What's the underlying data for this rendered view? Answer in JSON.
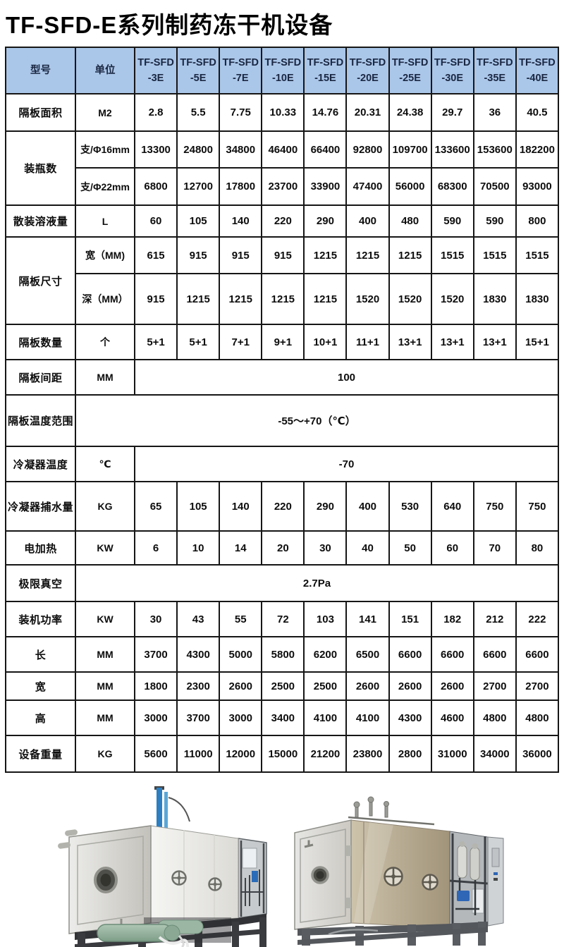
{
  "title": "TF-SFD-E系列制药冻干机设备",
  "colors": {
    "header_bg": "#aac6e8",
    "header_text": "#1a2742",
    "border": "#161616",
    "compressor_green": "#8fae99",
    "pipe_blue": "#2d7fc2"
  },
  "table": {
    "header": {
      "model_label": "型号",
      "unit_label": "单位",
      "model_prefix": "TF-SFD",
      "models": [
        "-3E",
        "-5E",
        "-7E",
        "-10E",
        "-15E",
        "-20E",
        "-25E",
        "-30E",
        "-35E",
        "-40E"
      ]
    },
    "rows": [
      {
        "label": "隔板面积",
        "unit": "M2",
        "values": [
          "2.8",
          "5.5",
          "7.75",
          "10.33",
          "14.76",
          "20.31",
          "24.38",
          "29.7",
          "36",
          "40.5"
        ]
      },
      {
        "label": "装瓶数",
        "subrows": [
          {
            "unit": "支/Φ16mm",
            "values": [
              "13300",
              "24800",
              "34800",
              "46400",
              "66400",
              "92800",
              "109700",
              "133600",
              "153600",
              "182200"
            ]
          },
          {
            "unit": "支/Φ22mm",
            "values": [
              "6800",
              "12700",
              "17800",
              "23700",
              "33900",
              "47400",
              "56000",
              "68300",
              "70500",
              "93000"
            ]
          }
        ]
      },
      {
        "label": "散装溶液量",
        "unit": "L",
        "values": [
          "60",
          "105",
          "140",
          "220",
          "290",
          "400",
          "480",
          "590",
          "590",
          "800"
        ]
      },
      {
        "label": "隔板尺寸",
        "subrows": [
          {
            "unit": "宽（MM)",
            "values": [
              "615",
              "915",
              "915",
              "915",
              "1215",
              "1215",
              "1215",
              "1515",
              "1515",
              "1515"
            ]
          },
          {
            "unit": "深（MM）",
            "values": [
              "915",
              "1215",
              "1215",
              "1215",
              "1215",
              "1520",
              "1520",
              "1520",
              "1830",
              "1830"
            ]
          }
        ]
      },
      {
        "label": "隔板数量",
        "unit": "个",
        "values": [
          "5+1",
          "5+1",
          "7+1",
          "9+1",
          "10+1",
          "11+1",
          "13+1",
          "13+1",
          "13+1",
          "15+1"
        ]
      },
      {
        "label": "隔板间距",
        "unit": "MM",
        "merged": "100"
      },
      {
        "label": "隔板温度范围",
        "merged_all": "-55～+70（℃）"
      },
      {
        "label": "冷凝器温度",
        "unit": "℃",
        "merged": "-70"
      },
      {
        "label": "冷凝器捕水量",
        "unit": "KG",
        "values": [
          "65",
          "105",
          "140",
          "220",
          "290",
          "400",
          "530",
          "640",
          "750",
          "750"
        ]
      },
      {
        "label": "电加热",
        "unit": "KW",
        "values": [
          "6",
          "10",
          "14",
          "20",
          "30",
          "40",
          "50",
          "60",
          "70",
          "80"
        ]
      },
      {
        "label": "极限真空",
        "merged_all": "2.7Pa"
      },
      {
        "label": "装机功率",
        "unit": "KW",
        "values": [
          "30",
          "43",
          "55",
          "72",
          "103",
          "141",
          "151",
          "182",
          "212",
          "222"
        ]
      },
      {
        "label": "长",
        "unit": "MM",
        "values": [
          "3700",
          "4300",
          "5000",
          "5800",
          "6200",
          "6500",
          "6600",
          "6600",
          "6600",
          "6600"
        ]
      },
      {
        "label": "宽",
        "unit": "MM",
        "values": [
          "1800",
          "2300",
          "2600",
          "2500",
          "2500",
          "2600",
          "2600",
          "2600",
          "2700",
          "2700"
        ]
      },
      {
        "label": "高",
        "unit": "MM",
        "values": [
          "3000",
          "3700",
          "3000",
          "3400",
          "4100",
          "4100",
          "4300",
          "4600",
          "4800",
          "4800"
        ]
      },
      {
        "label": "设备重量",
        "unit": "KG",
        "values": [
          "5600",
          "11000",
          "12000",
          "15000",
          "21200",
          "23800",
          "2800",
          "31000",
          "34000",
          "36000"
        ]
      }
    ]
  }
}
